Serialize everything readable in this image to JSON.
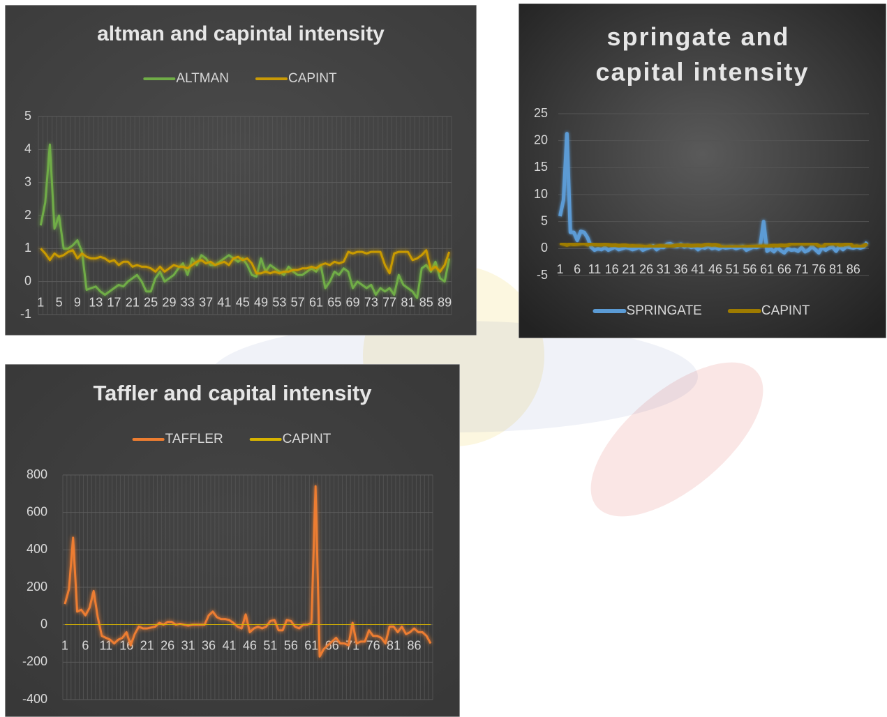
{
  "chart_data": [
    {
      "type": "line",
      "title": "altman and capintal intensity",
      "legend": "top",
      "grid": "both",
      "categories": [
        "1",
        null,
        null,
        null,
        "5",
        null,
        null,
        null,
        "9",
        null,
        null,
        null,
        "13",
        null,
        null,
        null,
        "17",
        null,
        null,
        null,
        "21",
        null,
        null,
        null,
        "25",
        null,
        null,
        null,
        "29",
        null,
        null,
        null,
        "33",
        null,
        null,
        null,
        "37",
        null,
        null,
        null,
        "41",
        null,
        null,
        null,
        "45",
        null,
        null,
        null,
        "49",
        null,
        null,
        null,
        "53",
        null,
        null,
        null,
        "57",
        null,
        null,
        null,
        "61",
        null,
        null,
        null,
        "65",
        null,
        null,
        null,
        "69",
        null,
        null,
        null,
        "73",
        null,
        null,
        null,
        "77",
        null,
        null,
        null,
        "81",
        null,
        null,
        null,
        "85",
        null,
        null,
        null,
        "89",
        null
      ],
      "ylim": [
        -1,
        5
      ],
      "yticks": [
        -1,
        0,
        1,
        2,
        3,
        4,
        5
      ],
      "series": [
        {
          "name": "ALTMAN",
          "color": "#70ad47",
          "values": [
            1.7,
            2.4,
            4.15,
            1.6,
            2.0,
            1.0,
            1.0,
            1.1,
            1.25,
            0.9,
            -0.25,
            -0.2,
            -0.15,
            -0.3,
            -0.4,
            -0.3,
            -0.2,
            -0.1,
            -0.15,
            0.0,
            0.1,
            0.2,
            0.0,
            -0.3,
            -0.3,
            0.1,
            0.3,
            0.0,
            0.1,
            0.2,
            0.4,
            0.55,
            0.2,
            0.7,
            0.5,
            0.8,
            0.7,
            0.5,
            0.5,
            0.6,
            0.7,
            0.8,
            0.7,
            0.6,
            0.7,
            0.5,
            0.2,
            0.15,
            0.7,
            0.3,
            0.5,
            0.4,
            0.3,
            0.2,
            0.45,
            0.3,
            0.2,
            0.2,
            0.3,
            0.4,
            0.3,
            0.5,
            -0.2,
            0.0,
            0.3,
            0.2,
            0.4,
            0.3,
            -0.2,
            0.0,
            -0.1,
            -0.2,
            -0.1,
            -0.4,
            -0.2,
            -0.3,
            -0.2,
            -0.4,
            0.2,
            -0.1,
            -0.2,
            -0.3,
            -0.5,
            0.4,
            0.5,
            0.3,
            0.6,
            0.1,
            0.0,
            0.7
          ]
        },
        {
          "name": "CAPINT",
          "color": "#c99a06",
          "values": [
            1.0,
            0.85,
            0.65,
            0.85,
            0.75,
            0.8,
            0.9,
            0.95,
            0.7,
            0.85,
            0.75,
            0.7,
            0.7,
            0.75,
            0.7,
            0.6,
            0.65,
            0.5,
            0.6,
            0.6,
            0.45,
            0.5,
            0.45,
            0.45,
            0.4,
            0.3,
            0.45,
            0.3,
            0.4,
            0.5,
            0.45,
            0.45,
            0.4,
            0.5,
            0.6,
            0.65,
            0.55,
            0.6,
            0.5,
            0.55,
            0.6,
            0.5,
            0.7,
            0.75,
            0.65,
            0.7,
            0.55,
            0.25,
            0.25,
            0.3,
            0.25,
            0.3,
            0.25,
            0.3,
            0.3,
            0.35,
            0.35,
            0.4,
            0.4,
            0.45,
            0.4,
            0.5,
            0.55,
            0.5,
            0.6,
            0.55,
            0.6,
            0.9,
            0.85,
            0.9,
            0.9,
            0.85,
            0.9,
            0.9,
            0.9,
            0.5,
            0.25,
            0.85,
            0.9,
            0.9,
            0.9,
            0.65,
            0.7,
            0.8,
            0.95,
            0.35,
            0.45,
            0.3,
            0.5,
            0.9
          ]
        }
      ]
    },
    {
      "type": "line",
      "title": "springate and capital intensity",
      "legend": "bottom",
      "grid": "y",
      "categories": [
        "1",
        null,
        null,
        null,
        null,
        "6",
        null,
        null,
        null,
        null,
        "11",
        null,
        null,
        null,
        null,
        "16",
        null,
        null,
        null,
        null,
        "21",
        null,
        null,
        null,
        null,
        "26",
        null,
        null,
        null,
        null,
        "31",
        null,
        null,
        null,
        null,
        "36",
        null,
        null,
        null,
        null,
        "41",
        null,
        null,
        null,
        null,
        "46",
        null,
        null,
        null,
        null,
        "51",
        null,
        null,
        null,
        null,
        "56",
        null,
        null,
        null,
        null,
        "61",
        null,
        null,
        null,
        null,
        "66",
        null,
        null,
        null,
        null,
        "71",
        null,
        null,
        null,
        null,
        "76",
        null,
        null,
        null,
        null,
        "81",
        null,
        null,
        null,
        null,
        "86",
        null,
        null,
        null,
        null
      ],
      "ylim": [
        -5,
        25
      ],
      "yticks": [
        -5,
        0,
        5,
        10,
        15,
        20,
        25
      ],
      "series": [
        {
          "name": "SPRINGATE",
          "color": "#5b9bd5",
          "values": [
            6,
            9,
            21.3,
            3,
            3,
            1.5,
            3.2,
            3,
            2,
            0.3,
            -0.3,
            0,
            -0.2,
            0.2,
            -0.3,
            0,
            0.3,
            -0.2,
            0,
            0.2,
            0.1,
            -0.2,
            0,
            0.3,
            -0.3,
            0,
            0.2,
            0.5,
            -0.2,
            0.3,
            0.2,
            0.8,
            0.9,
            0.5,
            0.4,
            0.8,
            0.3,
            0.6,
            0.2,
            0.4,
            -0.2,
            0.3,
            0.1,
            0.5,
            0,
            0.2,
            -0.1,
            0.3,
            0.1,
            0.2,
            0.3,
            0,
            0.2,
            0.4,
            -0.3,
            0,
            0.3,
            0.2,
            0.5,
            5,
            -0.5,
            0,
            -0.6,
            0.2,
            -0.4,
            -0.8,
            0,
            -0.3,
            -0.2,
            -0.5,
            0.2,
            -0.6,
            -0.3,
            0.4,
            -0.2,
            -0.8,
            0.3,
            -0.3,
            0.1,
            0.3,
            -0.5,
            0.5,
            -0.2,
            0.4,
            0.2,
            0.1,
            0.3,
            0.1,
            0.3,
            1.2
          ]
        },
        {
          "name": "CAPINT",
          "color": "#9e7b00",
          "values": [
            1.0,
            0.85,
            0.65,
            0.85,
            0.75,
            0.8,
            0.9,
            0.95,
            0.7,
            0.85,
            0.75,
            0.7,
            0.7,
            0.75,
            0.7,
            0.6,
            0.65,
            0.5,
            0.6,
            0.6,
            0.45,
            0.5,
            0.45,
            0.45,
            0.4,
            0.3,
            0.45,
            0.3,
            0.4,
            0.5,
            0.45,
            0.45,
            0.4,
            0.5,
            0.6,
            0.65,
            0.55,
            0.6,
            0.5,
            0.55,
            0.6,
            0.5,
            0.7,
            0.75,
            0.65,
            0.7,
            0.55,
            0.25,
            0.25,
            0.3,
            0.25,
            0.3,
            0.25,
            0.3,
            0.3,
            0.35,
            0.35,
            0.4,
            0.4,
            0.45,
            0.4,
            0.5,
            0.55,
            0.5,
            0.6,
            0.55,
            0.6,
            0.9,
            0.85,
            0.9,
            0.9,
            0.85,
            0.9,
            0.9,
            0.9,
            0.5,
            0.25,
            0.85,
            0.9,
            0.9,
            0.9,
            0.65,
            0.7,
            0.8,
            0.95,
            0.35,
            0.45,
            0.3,
            0.5,
            0.9
          ]
        }
      ]
    },
    {
      "type": "line",
      "title": "Taffler and capital intensity",
      "legend": "top",
      "grid": "both",
      "categories": [
        "1",
        null,
        null,
        null,
        null,
        "6",
        null,
        null,
        null,
        null,
        "11",
        null,
        null,
        null,
        null,
        "16",
        null,
        null,
        null,
        null,
        "21",
        null,
        null,
        null,
        null,
        "26",
        null,
        null,
        null,
        null,
        "31",
        null,
        null,
        null,
        null,
        "36",
        null,
        null,
        null,
        null,
        "41",
        null,
        null,
        null,
        null,
        "46",
        null,
        null,
        null,
        null,
        "51",
        null,
        null,
        null,
        null,
        "56",
        null,
        null,
        null,
        null,
        "61",
        null,
        null,
        null,
        null,
        "66",
        null,
        null,
        null,
        null,
        "71",
        null,
        null,
        null,
        null,
        "76",
        null,
        null,
        null,
        null,
        "81",
        null,
        null,
        null,
        null,
        "86",
        null,
        null,
        null,
        null
      ],
      "ylim": [
        -400,
        800
      ],
      "yticks": [
        -400,
        -200,
        0,
        200,
        400,
        600,
        800
      ],
      "series": [
        {
          "name": "TAFFLER",
          "color": "#ed7d31",
          "values": [
            110,
            190,
            465,
            70,
            80,
            50,
            90,
            180,
            40,
            -60,
            -70,
            -80,
            -100,
            -80,
            -70,
            -40,
            -110,
            -50,
            -10,
            -20,
            -20,
            -15,
            -10,
            10,
            0,
            15,
            15,
            0,
            5,
            0,
            -5,
            0,
            0,
            0,
            0,
            50,
            70,
            40,
            30,
            30,
            25,
            10,
            -10,
            -20,
            55,
            -40,
            -20,
            -10,
            -20,
            -10,
            20,
            25,
            -30,
            -30,
            25,
            20,
            -10,
            -20,
            0,
            0,
            10,
            740,
            -170,
            -130,
            -110,
            -90,
            -70,
            -100,
            -100,
            -110,
            10,
            -100,
            -90,
            -90,
            -30,
            -60,
            -60,
            -70,
            -100,
            -10,
            -10,
            -40,
            -10,
            -50,
            -40,
            -20,
            -40,
            -40,
            -60,
            -100
          ]
        },
        {
          "name": "CAPINT",
          "color": "#d6b300",
          "values": [
            1.0,
            0.85,
            0.65,
            0.85,
            0.75,
            0.8,
            0.9,
            0.95,
            0.7,
            0.85,
            0.75,
            0.7,
            0.7,
            0.75,
            0.7,
            0.6,
            0.65,
            0.5,
            0.6,
            0.6,
            0.45,
            0.5,
            0.45,
            0.45,
            0.4,
            0.3,
            0.45,
            0.3,
            0.4,
            0.5,
            0.45,
            0.45,
            0.4,
            0.5,
            0.6,
            0.65,
            0.55,
            0.6,
            0.5,
            0.55,
            0.6,
            0.5,
            0.7,
            0.75,
            0.65,
            0.7,
            0.55,
            0.25,
            0.25,
            0.3,
            0.25,
            0.3,
            0.25,
            0.3,
            0.3,
            0.35,
            0.35,
            0.4,
            0.4,
            0.45,
            0.4,
            0.5,
            0.55,
            0.5,
            0.6,
            0.55,
            0.6,
            0.9,
            0.85,
            0.9,
            0.9,
            0.85,
            0.9,
            0.9,
            0.9,
            0.5,
            0.25,
            0.85,
            0.9,
            0.9,
            0.9,
            0.65,
            0.7,
            0.8,
            0.95,
            0.35,
            0.45,
            0.3,
            0.5,
            0.9
          ]
        }
      ]
    }
  ]
}
